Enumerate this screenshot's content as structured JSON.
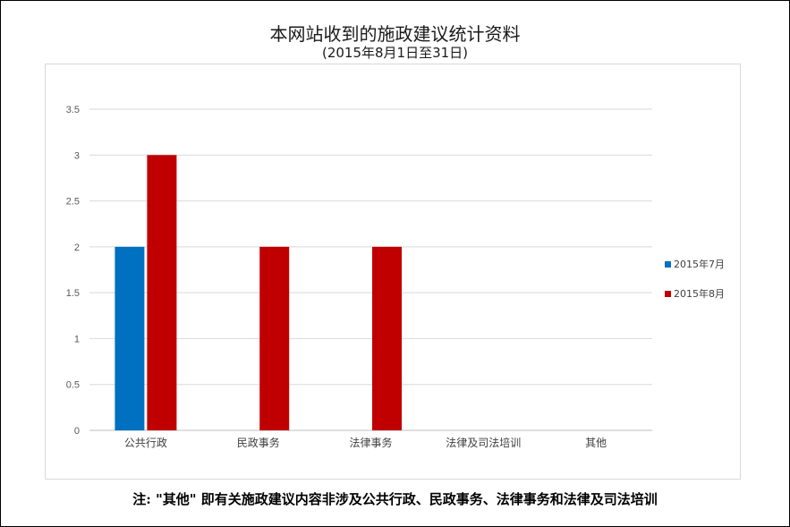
{
  "chart_data": {
    "type": "bar",
    "title": "本网站收到的施政建议统计资料",
    "subtitle": "(2015年8月1日至31日)",
    "categories": [
      "公共行政",
      "民政事务",
      "法律事务",
      "法律及司法培训",
      "其他"
    ],
    "series": [
      {
        "name": "2015年7月",
        "color": "#0070c0",
        "values": [
          2,
          0,
          0,
          0,
          0
        ]
      },
      {
        "name": "2015年8月",
        "color": "#c00000",
        "values": [
          3,
          2,
          2,
          0,
          0
        ]
      }
    ],
    "ylim": [
      0,
      3.5
    ],
    "yticks": [
      "0",
      "0.5",
      "1",
      "1.5",
      "2",
      "2.5",
      "3",
      "3.5"
    ],
    "grid": true,
    "legend_position": "right"
  },
  "footnote": "注: \"其他\" 即有关施政建议内容非涉及公共行政、民政事务、法律事务和法律及司法培训"
}
